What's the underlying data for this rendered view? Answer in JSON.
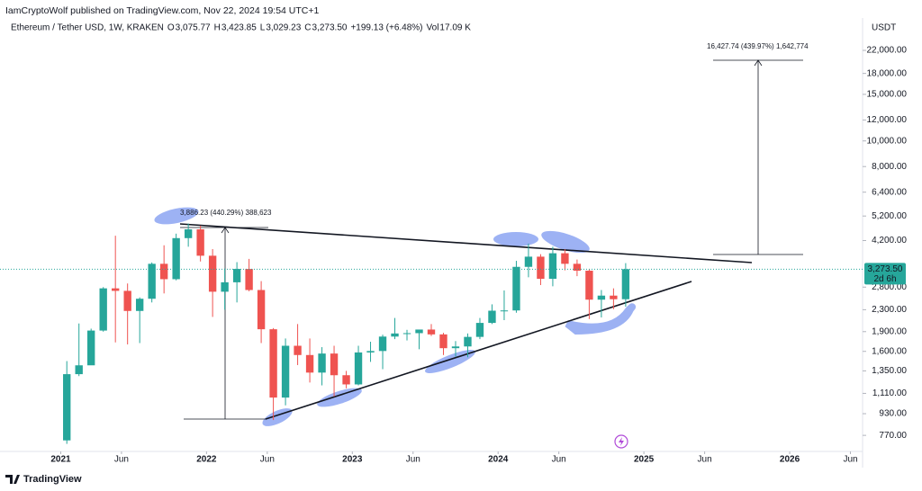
{
  "chart_data": {
    "type": "candlestick",
    "publisher": "IamCryptoWolf published on TradingView.com, Nov 22, 2024 19:54 UTC+1",
    "title": "Ethereum / Tether USD, 1W, KRAKEN",
    "header_values": [
      {
        "label": "O",
        "value": "3,075.77"
      },
      {
        "label": "H",
        "value": "3,423.85"
      },
      {
        "label": "L",
        "value": "3,029.23"
      },
      {
        "label": "C",
        "value": "3,273.50"
      }
    ],
    "change": "+199.13 (+6.48%)",
    "volume": {
      "label": "Vol",
      "value": "17.09 K"
    },
    "currency": "USDT",
    "brand": "TradingView",
    "annotations": [
      "3,886.23 (440.29%) 388,623",
      "16,427.74 (439.97%) 1,642,774"
    ],
    "last_price": {
      "value": 3273.5,
      "label": "3,273.50"
    },
    "countdown": "2d 6h",
    "log_scale": true,
    "up_color": "#26a69a",
    "down_color": "#ef5350",
    "x": [
      "2021-01",
      "2021-02",
      "2021-03",
      "2021-04",
      "2021-05",
      "2021-06",
      "2021-07",
      "2021-08",
      "2021-09",
      "2021-10",
      "2021-11",
      "2021-12",
      "2022-01",
      "2022-02",
      "2022-03",
      "2022-04",
      "2022-05",
      "2022-06",
      "2022-07",
      "2022-08",
      "2022-09",
      "2022-10",
      "2022-11",
      "2022-12",
      "2023-01",
      "2023-02",
      "2023-03",
      "2023-04",
      "2023-05",
      "2023-06",
      "2023-07",
      "2023-08",
      "2023-09",
      "2023-10",
      "2023-11",
      "2023-12",
      "2024-01",
      "2024-02",
      "2024-03",
      "2024-04",
      "2024-05",
      "2024-06",
      "2024-07",
      "2024-08",
      "2024-09",
      "2024-10",
      "2024-11"
    ],
    "open": [
      737,
      1312,
      1417,
      1918,
      2770,
      2710,
      2275,
      2530,
      3430,
      3000,
      4290,
      4630,
      3680,
      2690,
      2920,
      3280,
      2730,
      1940,
      1070,
      1680,
      1550,
      1330,
      1570,
      1300,
      1200,
      1585,
      1605,
      1820,
      1870,
      1875,
      1935,
      1855,
      1645,
      1670,
      1815,
      2050,
      2280,
      2285,
      3340,
      3650,
      3010,
      3760,
      3430,
      3230,
      2510,
      2600,
      2520
    ],
    "high": [
      1470,
      2040,
      1950,
      2800,
      4380,
      2890,
      2560,
      3470,
      4030,
      4460,
      4870,
      4780,
      3900,
      3290,
      3480,
      3580,
      2950,
      1960,
      1790,
      2030,
      1790,
      1660,
      1680,
      1350,
      1680,
      1740,
      1850,
      2140,
      1930,
      1930,
      2030,
      1880,
      1750,
      1870,
      2140,
      2410,
      2720,
      3520,
      4090,
      3730,
      3980,
      3890,
      3560,
      3270,
      2730,
      2770,
      3450
    ],
    "low": [
      715,
      1290,
      1440,
      1900,
      1730,
      1700,
      1720,
      2450,
      2650,
      2970,
      3980,
      3500,
      2160,
      2300,
      2450,
      2700,
      1720,
      880,
      1000,
      1420,
      1220,
      1190,
      1080,
      1160,
      1190,
      1460,
      1370,
      1780,
      1760,
      1630,
      1830,
      1550,
      1530,
      1520,
      1780,
      2030,
      2100,
      2240,
      3050,
      2850,
      2820,
      3240,
      3080,
      2120,
      2150,
      2310,
      2360
    ],
    "close": [
      1312,
      1417,
      1918,
      2770,
      2710,
      2275,
      2530,
      3430,
      3000,
      4290,
      4630,
      3680,
      2690,
      2920,
      3280,
      2730,
      1940,
      1070,
      1680,
      1550,
      1330,
      1570,
      1300,
      1200,
      1585,
      1605,
      1820,
      1870,
      1875,
      1935,
      1855,
      1645,
      1670,
      1815,
      2050,
      2280,
      2285,
      3340,
      3650,
      3010,
      3760,
      3430,
      3230,
      2510,
      2600,
      2520,
      3273.5
    ],
    "xlim": [
      "2020-08",
      "2026-07"
    ],
    "xticks": [
      {
        "value": "2021-01",
        "label": "2021"
      },
      {
        "value": "2021-06",
        "label": "Jun"
      },
      {
        "value": "2022-01",
        "label": "2022"
      },
      {
        "value": "2022-06",
        "label": "Jun"
      },
      {
        "value": "2023-01",
        "label": "2023"
      },
      {
        "value": "2023-06",
        "label": "Jun"
      },
      {
        "value": "2024-01",
        "label": "2024"
      },
      {
        "value": "2024-06",
        "label": "Jun"
      },
      {
        "value": "2025-01",
        "label": "2025"
      },
      {
        "value": "2025-06",
        "label": "Jun"
      },
      {
        "value": "2026-01",
        "label": "2026"
      },
      {
        "value": "2026-06",
        "label": "Jun"
      }
    ],
    "ylim": [
      680,
      29170
    ],
    "yticks": [
      {
        "value": 770,
        "label": "770.00"
      },
      {
        "value": 930,
        "label": "930.00"
      },
      {
        "value": 1110,
        "label": "1,110.00"
      },
      {
        "value": 1350,
        "label": "1,350.00"
      },
      {
        "value": 1600,
        "label": "1,600.00"
      },
      {
        "value": 1900,
        "label": "1,900.00"
      },
      {
        "value": 2300,
        "label": "2,300.00"
      },
      {
        "value": 2800,
        "label": "2,800.00"
      },
      {
        "value": 4200,
        "label": "4,200.00"
      },
      {
        "value": 5200,
        "label": "5,200.00"
      },
      {
        "value": 6400,
        "label": "6,400.00"
      },
      {
        "value": 8000,
        "label": "8,000.00"
      },
      {
        "value": 10000,
        "label": "10,000.00"
      },
      {
        "value": 12000,
        "label": "12,000.00"
      },
      {
        "value": 15000,
        "label": "15,000.00"
      },
      {
        "value": 18000,
        "label": "18,000.00"
      },
      {
        "value": 22000,
        "label": "22,000.00"
      }
    ]
  }
}
